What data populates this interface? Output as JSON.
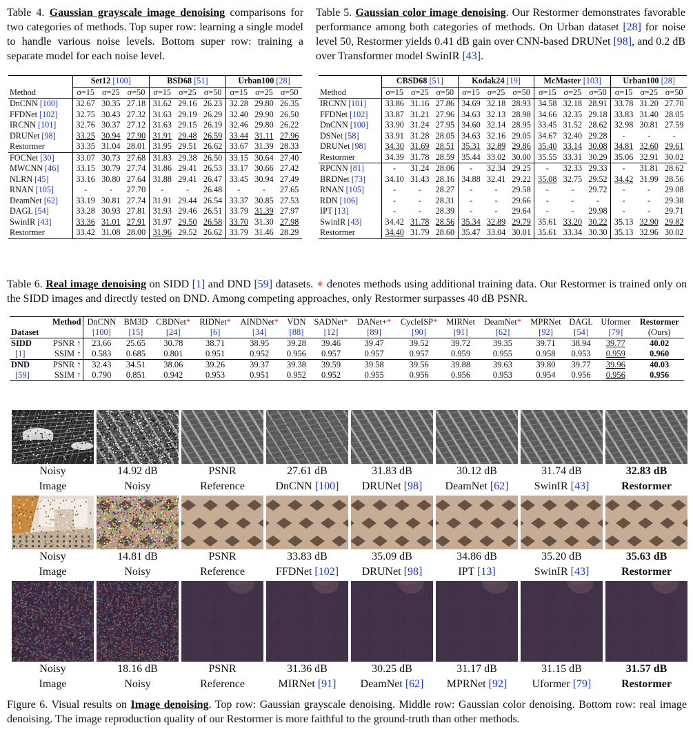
{
  "table4": {
    "label": "Table 4.",
    "highlight": "Gaussian grayscale image denoising",
    "caption_rest": "comparisons for two categories of methods. Top super row: learning a single model to handle various noise levels. Bottom super row: training a separate model for each noise level.",
    "method_header": "Method",
    "datasets": [
      {
        "name": "Set12",
        "ref": "[100]"
      },
      {
        "name": "BSD68",
        "ref": "[51]"
      },
      {
        "name": "Urban100",
        "ref": "[28]"
      }
    ],
    "sigmas": [
      "σ=15",
      "σ=25",
      "σ=50"
    ],
    "group1": [
      {
        "method": "DnCNN",
        "ref": "[100]",
        "vals": [
          "32.67",
          "30.35",
          "27.18",
          "31.62",
          "29.16",
          "26.23",
          "32.28",
          "29.80",
          "26.35"
        ]
      },
      {
        "method": "FFDNet",
        "ref": "[102]",
        "vals": [
          "32.75",
          "30.43",
          "27.32",
          "31.63",
          "29.19",
          "26.29",
          "32.40",
          "29.90",
          "26.50"
        ]
      },
      {
        "method": "IRCNN",
        "ref": "[101]",
        "vals": [
          "32.76",
          "30.37",
          "27.12",
          "31.63",
          "29.15",
          "26.19",
          "32.46",
          "29.80",
          "26.22"
        ]
      },
      {
        "method": "DRUNet",
        "ref": "[98]",
        "vals": [
          "33.25",
          "30.94",
          "27.90",
          "31.91",
          "29.48",
          "26.59",
          "33.44",
          "31.11",
          "27.96"
        ]
      },
      {
        "method": "Restormer",
        "ref": "",
        "vals": [
          "33.35",
          "31.04",
          "28.01",
          "31.95",
          "29.51",
          "26.62",
          "33.67",
          "31.39",
          "28.33"
        ]
      }
    ],
    "group2": [
      {
        "method": "FOCNet",
        "ref": "[30]",
        "vals": [
          "33.07",
          "30.73",
          "27.68",
          "31.83",
          "29.38",
          "26.50",
          "33.15",
          "30.64",
          "27.40"
        ]
      },
      {
        "method": "MWCNN",
        "ref": "[46]",
        "vals": [
          "33.15",
          "30.79",
          "27.74",
          "31.86",
          "29.41",
          "26.53",
          "33.17",
          "30.66",
          "27.42"
        ]
      },
      {
        "method": "NLRN",
        "ref": "[45]",
        "vals": [
          "33.16",
          "30.80",
          "27.64",
          "31.88",
          "29.41",
          "26.47",
          "33.45",
          "30.94",
          "27.49"
        ]
      },
      {
        "method": "RNAN",
        "ref": "[105]",
        "vals": [
          "-",
          "-",
          "27.70",
          "-",
          "-",
          "26.48",
          "-",
          "-",
          "27.65"
        ]
      },
      {
        "method": "DeamNet",
        "ref": "[62]",
        "vals": [
          "33.19",
          "30.81",
          "27.74",
          "31.91",
          "29.44",
          "26.54",
          "33.37",
          "30.85",
          "27.53"
        ]
      },
      {
        "method": "DAGL",
        "ref": "[54]",
        "vals": [
          "33.28",
          "30.93",
          "27.81",
          "31.93",
          "29.46",
          "26.51",
          "33.79",
          "31.39",
          "27.97"
        ]
      },
      {
        "method": "SwinIR",
        "ref": "[43]",
        "vals": [
          "33.36",
          "31.01",
          "27.91",
          "31.97",
          "29.50",
          "26.58",
          "33.70",
          "31.30",
          "27.98"
        ]
      },
      {
        "method": "Restormer",
        "ref": "",
        "vals": [
          "33.42",
          "31.08",
          "28.00",
          "31.96",
          "29.52",
          "26.62",
          "33.79",
          "31.46",
          "28.29"
        ]
      }
    ]
  },
  "table5": {
    "label": "Table 5.",
    "highlight": "Gaussian color image denoising",
    "caption_rest_1": ". Our Restormer demonstrates favorable performance among both categories of methods. On Urban dataset",
    "ref_urban": "[28]",
    "caption_rest_2": "for noise level 50, Restormer yields 0.41 dB gain over CNN-based DRUNet",
    "ref_drunet": "[98]",
    "caption_rest_3": ", and 0.2 dB over Transformer model SwinIR",
    "ref_swinir": "[43]",
    "caption_end": ".",
    "method_header": "Method",
    "datasets": [
      {
        "name": "CBSD68",
        "ref": "[51]"
      },
      {
        "name": "Kodak24",
        "ref": "[19]"
      },
      {
        "name": "McMaster",
        "ref": "[103]"
      },
      {
        "name": "Urban100",
        "ref": "[28]"
      }
    ],
    "sigmas": [
      "σ=15",
      "σ=25",
      "σ=50"
    ],
    "group1": [
      {
        "method": "IRCNN",
        "ref": "[101]",
        "vals": [
          "33.86",
          "31.16",
          "27.86",
          "34.69",
          "32.18",
          "28.93",
          "34.58",
          "32.18",
          "28.91",
          "33.78",
          "31.20",
          "27.70"
        ]
      },
      {
        "method": "FFDNet",
        "ref": "[102]",
        "vals": [
          "33.87",
          "31.21",
          "27.96",
          "34.63",
          "32.13",
          "28.98",
          "34.66",
          "32.35",
          "29.18",
          "33.83",
          "31.40",
          "28.05"
        ]
      },
      {
        "method": "DnCNN",
        "ref": "[100]",
        "vals": [
          "33.90",
          "31.24",
          "27.95",
          "34.60",
          "32.14",
          "28.95",
          "33.45",
          "31.52",
          "28.62",
          "32.98",
          "30.81",
          "27.59"
        ]
      },
      {
        "method": "DSNet",
        "ref": "[58]",
        "vals": [
          "33.91",
          "31.28",
          "28.05",
          "34.63",
          "32.16",
          "29.05",
          "34.67",
          "32.40",
          "29.28",
          "-",
          "-",
          "-"
        ]
      },
      {
        "method": "DRUNet",
        "ref": "[98]",
        "vals": [
          "34.30",
          "31.69",
          "28.51",
          "35.31",
          "32.89",
          "29.86",
          "35.40",
          "33.14",
          "30.08",
          "34.81",
          "32.60",
          "29.61"
        ]
      },
      {
        "method": "Restormer",
        "ref": "",
        "vals": [
          "34.39",
          "31.78",
          "28.59",
          "35.44",
          "33.02",
          "30.00",
          "35.55",
          "33.31",
          "30.29",
          "35.06",
          "32.91",
          "30.02"
        ]
      }
    ],
    "group2": [
      {
        "method": "RPCNN",
        "ref": "[81]",
        "vals": [
          "-",
          "31.24",
          "28.06",
          "-",
          "32.34",
          "29.25",
          "-",
          "32.33",
          "29.33",
          "-",
          "31.81",
          "28.62"
        ]
      },
      {
        "method": "BRDNet",
        "ref": "[73]",
        "vals": [
          "34.10",
          "31.43",
          "28.16",
          "34.88",
          "32.41",
          "29.22",
          "35.08",
          "32.75",
          "29.52",
          "34.42",
          "31.99",
          "28.56"
        ]
      },
      {
        "method": "RNAN",
        "ref": "[105]",
        "vals": [
          "-",
          "-",
          "28.27",
          "-",
          "-",
          "29.58",
          "-",
          "-",
          "29.72",
          "-",
          "-",
          "29.08"
        ]
      },
      {
        "method": "RDN",
        "ref": "[106]",
        "vals": [
          "-",
          "-",
          "28.31",
          "-",
          "-",
          "29.66",
          "-",
          "-",
          "-",
          "-",
          "-",
          "29.38"
        ]
      },
      {
        "method": "IPT",
        "ref": "[13]",
        "vals": [
          "-",
          "-",
          "28.39",
          "-",
          "-",
          "29.64",
          "-",
          "-",
          "29.98",
          "-",
          "-",
          "29.71"
        ]
      },
      {
        "method": "SwinIR",
        "ref": "[43]",
        "vals": [
          "34.42",
          "31.78",
          "28.56",
          "35.34",
          "32.89",
          "29.79",
          "35.61",
          "33.20",
          "30.22",
          "35.13",
          "32.90",
          "29.82"
        ]
      },
      {
        "method": "Restormer",
        "ref": "",
        "vals": [
          "34.40",
          "31.79",
          "28.60",
          "35.47",
          "33.04",
          "30.01",
          "35.61",
          "33.34",
          "30.30",
          "35.13",
          "32.96",
          "30.02"
        ]
      }
    ]
  },
  "table6": {
    "label": "Table 6.",
    "highlight": "Real image denoising",
    "caption_a": "on SIDD",
    "ref_sidd": "[1]",
    "caption_b": "and DND",
    "ref_dnd": "[59]",
    "caption_c": "datasets.",
    "star": "∗",
    "caption_d": "denotes methods using additional training data. Our Restormer is trained only on the SIDD images and directly tested on DND. Among competing approaches, only Restormer surpasses 40 dB PSNR.",
    "dataset_header": "Dataset",
    "method_header": "Method",
    "methods": [
      {
        "name": "DnCNN",
        "star": "",
        "ref": "[100]"
      },
      {
        "name": "BM3D",
        "star": "",
        "ref": "[15]"
      },
      {
        "name": "CBDNet",
        "star": "*",
        "ref": "[24]"
      },
      {
        "name": "RIDNet",
        "star": "*",
        "ref": "[6]"
      },
      {
        "name": "AINDNet",
        "star": "*",
        "ref": "[34]"
      },
      {
        "name": "VDN",
        "star": "",
        "ref": "[88]"
      },
      {
        "name": "SADNet",
        "star": "*",
        "ref": "[12]"
      },
      {
        "name": "DANet+",
        "star": "*",
        "ref": "[89]"
      },
      {
        "name": "CycleISP",
        "star": "*",
        "ref": "[90]"
      },
      {
        "name": "MIRNet",
        "star": "",
        "ref": "[91]"
      },
      {
        "name": "DeamNet",
        "star": "*",
        "ref": "[62]"
      },
      {
        "name": "MPRNet",
        "star": "",
        "ref": "[92]"
      },
      {
        "name": "DAGL",
        "star": "",
        "ref": "[54]"
      },
      {
        "name": "Uformer",
        "star": "",
        "ref": "[79]"
      },
      {
        "name": "Restormer",
        "star": "",
        "ref": "(Ours)"
      }
    ],
    "rows": [
      {
        "dataset": "SIDD",
        "ref": "[1]",
        "psnr_label": "PSNR ↑",
        "ssim_label": "SSIM ↑",
        "psnr": [
          "23.66",
          "25.65",
          "30.78",
          "38.71",
          "38.95",
          "39.28",
          "39.46",
          "39.47",
          "39.52",
          "39.72",
          "39.35",
          "39.71",
          "38.94",
          "39.77",
          "40.02"
        ],
        "ssim": [
          "0.583",
          "0.685",
          "0.801",
          "0.951",
          "0.952",
          "0.956",
          "0.957",
          "0.957",
          "0.957",
          "0.959",
          "0.955",
          "0.958",
          "0.953",
          "0.959",
          "0.960"
        ]
      },
      {
        "dataset": "DND",
        "ref": "[59]",
        "psnr_label": "PSNR ↑",
        "ssim_label": "SSIM ↑",
        "psnr": [
          "32.43",
          "34.51",
          "38.06",
          "39.26",
          "39.37",
          "39.38",
          "39.59",
          "39.58",
          "39.56",
          "39.88",
          "39.63",
          "39.80",
          "39.77",
          "39.96",
          "40.03"
        ],
        "ssim": [
          "0.790",
          "0.851",
          "0.942",
          "0.953",
          "0.951",
          "0.952",
          "0.952",
          "0.955",
          "0.956",
          "0.956",
          "0.953",
          "0.954",
          "0.956",
          "0.956",
          "0.956"
        ]
      }
    ]
  },
  "figure6": {
    "rows": [
      {
        "labels": [
          {
            "top": "Noisy",
            "bottom": "Image",
            "ref": ""
          },
          {
            "top": "14.92 dB",
            "bottom": "Noisy",
            "ref": ""
          },
          {
            "top": "PSNR",
            "bottom": "Reference",
            "ref": ""
          },
          {
            "top": "27.61 dB",
            "bottom": "DnCNN",
            "ref": "[100]"
          },
          {
            "top": "31.83 dB",
            "bottom": "DRUNet",
            "ref": "[98]"
          },
          {
            "top": "30.12 dB",
            "bottom": "DeamNet",
            "ref": "[62]"
          },
          {
            "top": "31.74 dB",
            "bottom": "SwinIR",
            "ref": "[43]"
          },
          {
            "top": "32.83 dB",
            "bottom": "Restormer",
            "ref": ""
          }
        ]
      },
      {
        "labels": [
          {
            "top": "Noisy",
            "bottom": "Image",
            "ref": ""
          },
          {
            "top": "14.81 dB",
            "bottom": "Noisy",
            "ref": ""
          },
          {
            "top": "PSNR",
            "bottom": "Reference",
            "ref": ""
          },
          {
            "top": "33.83 dB",
            "bottom": "FFDNet",
            "ref": "[102]"
          },
          {
            "top": "35.09 dB",
            "bottom": "DRUNet",
            "ref": "[98]"
          },
          {
            "top": "34.86 dB",
            "bottom": "IPT",
            "ref": "[13]"
          },
          {
            "top": "35.20 dB",
            "bottom": "SwinIR",
            "ref": "[43]"
          },
          {
            "top": "35.63 dB",
            "bottom": "Restormer",
            "ref": ""
          }
        ]
      },
      {
        "labels": [
          {
            "top": "Noisy",
            "bottom": "Image",
            "ref": ""
          },
          {
            "top": "18.16 dB",
            "bottom": "Noisy",
            "ref": ""
          },
          {
            "top": "PSNR",
            "bottom": "Reference",
            "ref": ""
          },
          {
            "top": "31.36 dB",
            "bottom": "MIRNet",
            "ref": "[91]"
          },
          {
            "top": "30.25 dB",
            "bottom": "DeamNet",
            "ref": "[62]"
          },
          {
            "top": "31.17 dB",
            "bottom": "MPRNet",
            "ref": "[92]"
          },
          {
            "top": "31.15 dB",
            "bottom": "Uformer",
            "ref": "[79]"
          },
          {
            "top": "31.57 dB",
            "bottom": "Restormer",
            "ref": ""
          }
        ]
      }
    ],
    "caption_label": "Figure 6.",
    "caption_a": "Visual results on",
    "caption_highlight": "Image denoising",
    "caption_b": ". Top row: Gaussian grayscale denoising. Middle row: Gaussian color denoising. Bottom row: real image denoising. The image reproduction quality of our Restormer is more faithful to the ground-truth than other methods."
  }
}
